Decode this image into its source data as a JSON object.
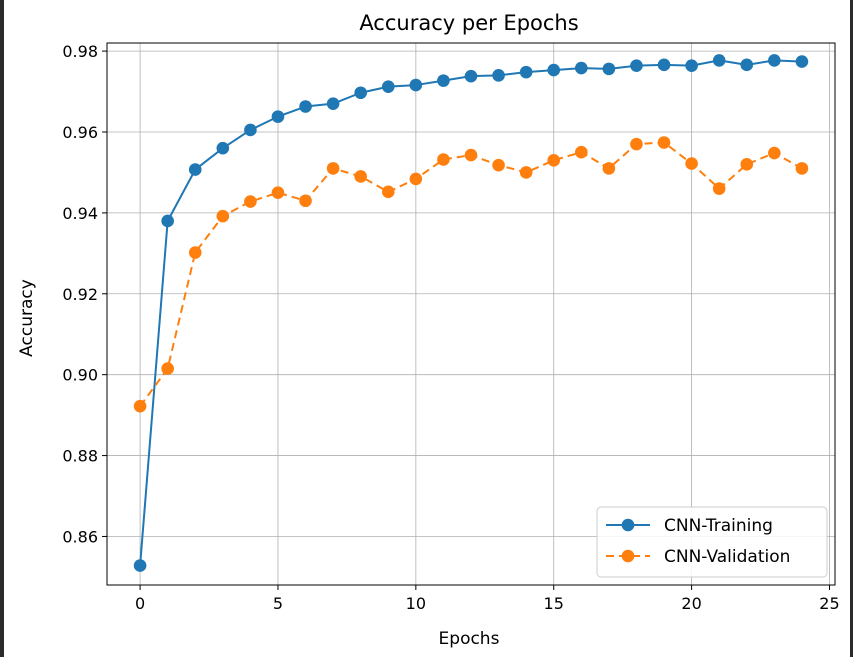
{
  "chart_data": {
    "type": "line",
    "title": "Accuracy per Epochs",
    "xlabel": "Epochs",
    "ylabel": "Accuracy",
    "xlim": [
      -1.2,
      25.2
    ],
    "ylim": [
      0.848,
      0.982
    ],
    "xticks": [
      0,
      5,
      10,
      15,
      20,
      25
    ],
    "xtick_labels": [
      "0",
      "5",
      "10",
      "15",
      "20",
      "25"
    ],
    "yticks": [
      0.86,
      0.88,
      0.9,
      0.92,
      0.94,
      0.96,
      0.98
    ],
    "ytick_labels": [
      "0.86",
      "0.88",
      "0.90",
      "0.92",
      "0.94",
      "0.96",
      "0.98"
    ],
    "grid": true,
    "legend_position": "bottom-right",
    "x": [
      0,
      1,
      2,
      3,
      4,
      5,
      6,
      7,
      8,
      9,
      10,
      11,
      12,
      13,
      14,
      15,
      16,
      17,
      18,
      19,
      20,
      21,
      22,
      23,
      24
    ],
    "series": [
      {
        "name": "CNN-Training",
        "color": "#1f77b4",
        "line_style": "solid",
        "marker": "circle",
        "values": [
          0.8528,
          0.938,
          0.9507,
          0.956,
          0.9605,
          0.9638,
          0.9663,
          0.967,
          0.9697,
          0.9712,
          0.9716,
          0.9727,
          0.9738,
          0.974,
          0.9748,
          0.9753,
          0.9758,
          0.9756,
          0.9764,
          0.9766,
          0.9764,
          0.9777,
          0.9766,
          0.9777,
          0.9774
        ]
      },
      {
        "name": "CNN-Validation",
        "color": "#ff7f0e",
        "line_style": "dashed",
        "marker": "circle",
        "values": [
          0.8922,
          0.9015,
          0.9302,
          0.9392,
          0.9428,
          0.945,
          0.943,
          0.951,
          0.949,
          0.9452,
          0.9484,
          0.9532,
          0.9543,
          0.9518,
          0.95,
          0.953,
          0.955,
          0.951,
          0.957,
          0.9574,
          0.9522,
          0.946,
          0.952,
          0.9548,
          0.951
        ]
      }
    ]
  }
}
